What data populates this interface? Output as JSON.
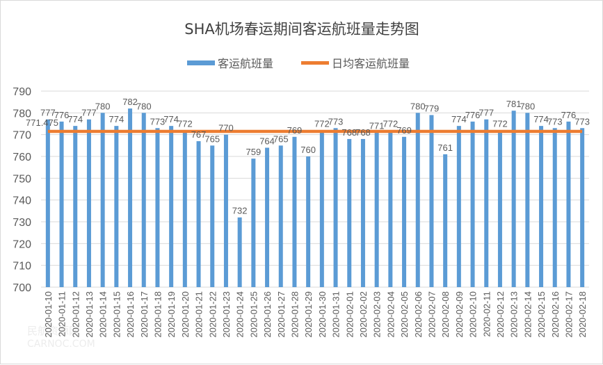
{
  "chart_data": {
    "type": "bar",
    "title": "SHA机场春运期间客运航班量走势图",
    "xlabel": "",
    "ylabel": "",
    "ylim": [
      700,
      790
    ],
    "yticks": [
      700,
      710,
      720,
      730,
      740,
      750,
      760,
      770,
      780,
      790
    ],
    "grid": true,
    "legend_position": "top",
    "categories": [
      "2020-01-10",
      "2020-01-11",
      "2020-01-12",
      "2020-01-13",
      "2020-01-14",
      "2020-01-15",
      "2020-01-16",
      "2020-01-17",
      "2020-01-18",
      "2020-01-19",
      "2020-01-20",
      "2020-01-21",
      "2020-01-22",
      "2020-01-23",
      "2020-01-24",
      "2020-01-25",
      "2020-01-26",
      "2020-01-27",
      "2020-01-28",
      "2020-01-29",
      "2020-01-30",
      "2020-01-31",
      "2020-02-01",
      "2020-02-02",
      "2020-02-03",
      "2020-02-04",
      "2020-02-05",
      "2020-02-06",
      "2020-02-07",
      "2020-02-08",
      "2020-02-09",
      "2020-02-10",
      "2020-02-11",
      "2020-02-12",
      "2020-02-13",
      "2020-02-14",
      "2020-02-15",
      "2020-02-16",
      "2020-02-17",
      "2020-02-18"
    ],
    "series": [
      {
        "name": "客运航班量",
        "type": "bar",
        "color": "#5b9bd5",
        "values": [
          777,
          776,
          774,
          777,
          780,
          774,
          782,
          780,
          773,
          774,
          772,
          767,
          765,
          770,
          732,
          759,
          764,
          765,
          769,
          760,
          772,
          773,
          768,
          768,
          771,
          772,
          769,
          780,
          779,
          761,
          774,
          776,
          777,
          772,
          781,
          780,
          774,
          773,
          776,
          773
        ],
        "labels": [
          "777",
          "776",
          "774",
          "777",
          "780",
          "774",
          "782",
          "780",
          "773",
          "774",
          "772",
          "767",
          "765",
          "770",
          "732",
          "759",
          "764",
          "765",
          "769",
          "760",
          "772",
          "773",
          "768",
          "768",
          "771",
          "772",
          "769",
          "780",
          "779",
          "761",
          "774",
          "776",
          "777",
          "772",
          "781",
          "780",
          "774",
          "773",
          "776",
          "773"
        ]
      },
      {
        "name": "日均客运航班量",
        "type": "line",
        "color": "#ed7d31",
        "value": 771.475,
        "label": "771.475"
      }
    ]
  },
  "watermark": {
    "text": "民航资源网 CARNOC.COM"
  }
}
